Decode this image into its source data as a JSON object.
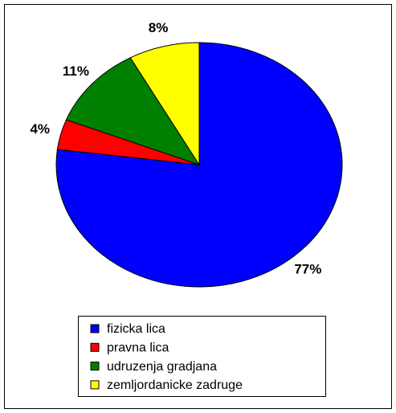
{
  "chart_data": {
    "type": "pie",
    "categories": [
      "fizicka lica",
      "pravna lica",
      "udruzenja gradjana",
      "zemljordanicke zadruge"
    ],
    "values": [
      77,
      4,
      11,
      8
    ],
    "value_labels": [
      "77%",
      "4%",
      "11%",
      "8%"
    ],
    "colors": [
      "#0000ff",
      "#ff0000",
      "#008000",
      "#ffff00"
    ]
  }
}
